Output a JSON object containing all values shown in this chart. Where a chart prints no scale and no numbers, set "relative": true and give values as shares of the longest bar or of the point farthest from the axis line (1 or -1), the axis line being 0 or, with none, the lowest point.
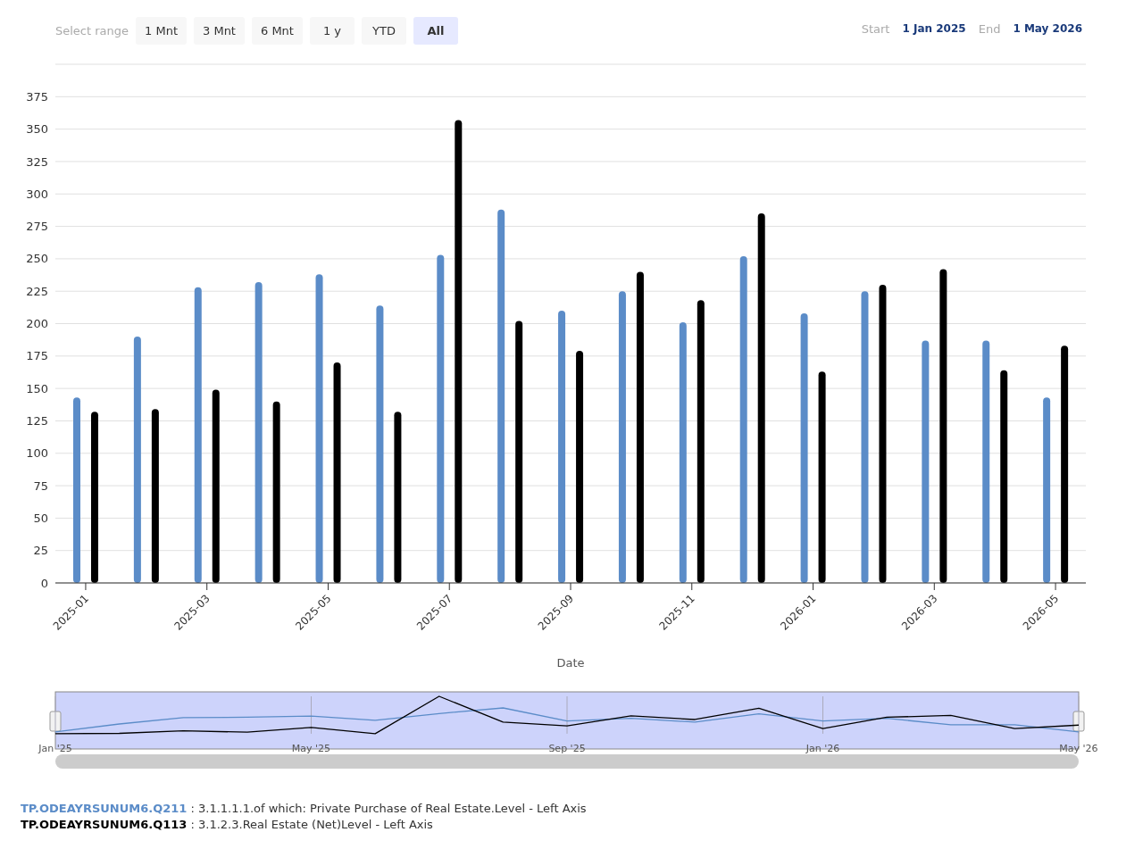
{
  "chart_data": [
    {
      "type": "bar",
      "xlabel": "Date",
      "categories": [
        "2025-01",
        null,
        "2025-03",
        null,
        "2025-05",
        null,
        "2025-07",
        null,
        "2025-09",
        null,
        "2025-11",
        null,
        "2026-01",
        null,
        "2026-03",
        null,
        "2026-05"
      ],
      "series": [
        {
          "name": "TP.ODEAYRSUNUM6.Q211 : 3.1.1.1.1.of which: Private Purchase of Real Estate.Level - Left Axis",
          "color": "#5b8cc8",
          "values": [
            143,
            190,
            228,
            232,
            238,
            214,
            253,
            288,
            210,
            225,
            201,
            252,
            208,
            225,
            187,
            187,
            143
          ]
        },
        {
          "name": "TP.ODEAYRSUNUM6.Q113 : 3.1.2.3.Real Estate (Net)Level - Left Axis",
          "color": "#000000",
          "values": [
            132,
            134,
            149,
            140,
            170,
            132,
            357,
            202,
            179,
            240,
            218,
            285,
            163,
            230,
            242,
            164,
            183
          ]
        }
      ],
      "ylim": [
        0,
        400
      ],
      "yticks": [
        0,
        25,
        50,
        75,
        100,
        125,
        150,
        175,
        200,
        225,
        250,
        275,
        300,
        325,
        350,
        375,
        {
          "value": 400,
          "label": null
        }
      ],
      "grid": "y",
      "legend": "bottom",
      "annotations": [
        "Select range",
        "1 Mnt",
        "3 Mnt",
        "6 Mnt",
        "1 y",
        "YTD",
        "All",
        "Start",
        "1 Jan 2025",
        "End",
        "1 May 2026"
      ]
    },
    {
      "type": "line",
      "relative": true,
      "grid": "x",
      "categories": [
        "Jan '25",
        null,
        null,
        null,
        "May '25",
        null,
        null,
        null,
        "Sep '25",
        null,
        null,
        null,
        "Jan '26",
        null,
        null,
        null,
        "May '26"
      ],
      "series": [
        {
          "color": "#5b8cc8",
          "values": [
            0.05,
            0.26,
            0.43,
            0.44,
            0.47,
            0.36,
            0.54,
            0.69,
            0.34,
            0.41,
            0.31,
            0.53,
            0.34,
            0.41,
            0.24,
            0.24,
            0.05
          ]
        },
        {
          "color": "#000000",
          "values": [
            0,
            0.01,
            0.08,
            0.04,
            0.17,
            0,
            1,
            0.31,
            0.21,
            0.48,
            0.38,
            0.68,
            0.14,
            0.44,
            0.49,
            0.14,
            0.23
          ]
        }
      ]
    }
  ]
}
